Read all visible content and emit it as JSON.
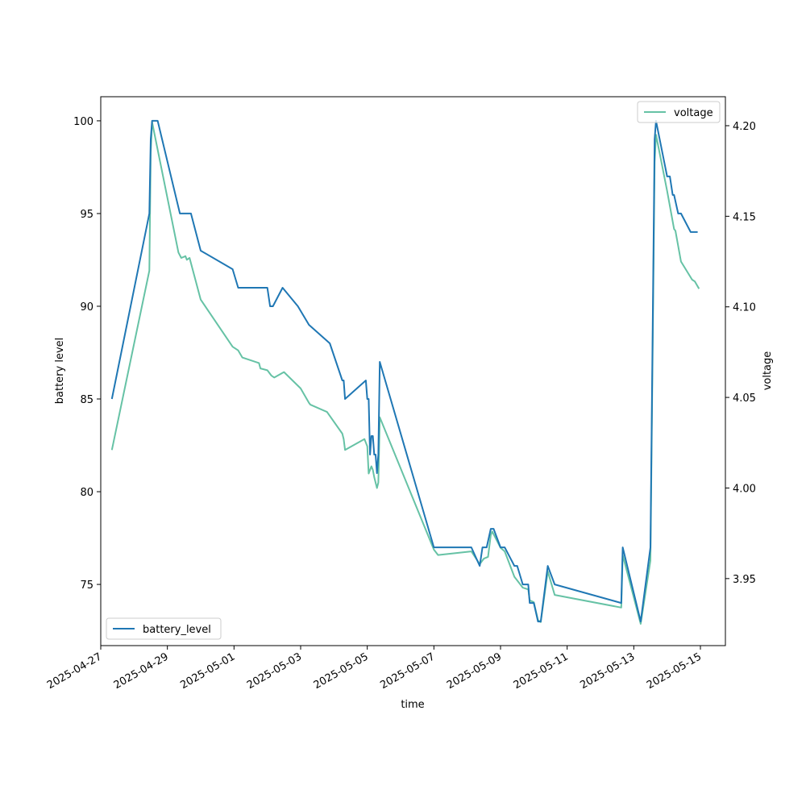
{
  "chart_data": {
    "type": "line",
    "xlabel": "time",
    "ylabel": "battery level",
    "y2label": "voltage",
    "xlim": [
      "2025-04-27T00:00",
      "2025-05-15T18:00"
    ],
    "ylim": [
      71.7,
      101.3
    ],
    "y2lim": [
      3.913,
      4.216
    ],
    "x_ticks": [
      "2025-04-27",
      "2025-04-29",
      "2025-05-01",
      "2025-05-03",
      "2025-05-05",
      "2025-05-07",
      "2025-05-09",
      "2025-05-11",
      "2025-05-13",
      "2025-05-15"
    ],
    "y_ticks": [
      "75",
      "80",
      "85",
      "90",
      "95",
      "100"
    ],
    "y2_ticks": [
      "3.95",
      "4.00",
      "4.05",
      "4.10",
      "4.15",
      "4.20"
    ],
    "grid": false,
    "series": [
      {
        "name": "battery_level",
        "axis": "left",
        "color": "#1f77b4",
        "legend_position": "lower-left",
        "points": [
          [
            "2025-04-27T08:00",
            85
          ],
          [
            "2025-04-28T11:00",
            95
          ],
          [
            "2025-04-28T12:00",
            99
          ],
          [
            "2025-04-28T13:00",
            100
          ],
          [
            "2025-04-28T17:00",
            100
          ],
          [
            "2025-04-29T09:00",
            95
          ],
          [
            "2025-04-29T17:00",
            95
          ],
          [
            "2025-04-30T00:00",
            93
          ],
          [
            "2025-04-30T23:00",
            92
          ],
          [
            "2025-05-01T03:00",
            91
          ],
          [
            "2025-05-02T00:00",
            91
          ],
          [
            "2025-05-02T02:00",
            90
          ],
          [
            "2025-05-02T04:00",
            90
          ],
          [
            "2025-05-02T11:00",
            91
          ],
          [
            "2025-05-02T22:00",
            90
          ],
          [
            "2025-05-03T06:00",
            89
          ],
          [
            "2025-05-03T21:00",
            88
          ],
          [
            "2025-05-04T06:00",
            86
          ],
          [
            "2025-05-04T07:00",
            86
          ],
          [
            "2025-05-04T08:00",
            85
          ],
          [
            "2025-05-04T23:00",
            86
          ],
          [
            "2025-05-05T00:00",
            85
          ],
          [
            "2025-05-05T01:00",
            85
          ],
          [
            "2025-05-05T02:00",
            82
          ],
          [
            "2025-05-05T03:00",
            83
          ],
          [
            "2025-05-05T04:00",
            83
          ],
          [
            "2025-05-05T05:00",
            82
          ],
          [
            "2025-05-05T06:00",
            82
          ],
          [
            "2025-05-05T07:00",
            81
          ],
          [
            "2025-05-05T08:00",
            82
          ],
          [
            "2025-05-05T09:00",
            87
          ],
          [
            "2025-05-07T00:00",
            77
          ],
          [
            "2025-05-08T03:00",
            77
          ],
          [
            "2025-05-08T09:00",
            76
          ],
          [
            "2025-05-08T11:00",
            77
          ],
          [
            "2025-05-08T14:00",
            77
          ],
          [
            "2025-05-08T17:00",
            78
          ],
          [
            "2025-05-08T19:00",
            78
          ],
          [
            "2025-05-09T00:00",
            77
          ],
          [
            "2025-05-09T03:00",
            77
          ],
          [
            "2025-05-09T10:00",
            76
          ],
          [
            "2025-05-09T12:00",
            76
          ],
          [
            "2025-05-09T16:00",
            75
          ],
          [
            "2025-05-09T20:00",
            75
          ],
          [
            "2025-05-09T21:00",
            74
          ],
          [
            "2025-05-10T00:00",
            74
          ],
          [
            "2025-05-10T03:00",
            73
          ],
          [
            "2025-05-10T05:00",
            73
          ],
          [
            "2025-05-10T10:00",
            76
          ],
          [
            "2025-05-10T15:00",
            75
          ],
          [
            "2025-05-12T15:00",
            74
          ],
          [
            "2025-05-12T16:00",
            77
          ],
          [
            "2025-05-13T05:00",
            73
          ],
          [
            "2025-05-13T12:00",
            77
          ],
          [
            "2025-05-13T15:00",
            99
          ],
          [
            "2025-05-13T16:00",
            100
          ],
          [
            "2025-05-14T00:00",
            97
          ],
          [
            "2025-05-14T02:00",
            97
          ],
          [
            "2025-05-14T04:00",
            96
          ],
          [
            "2025-05-14T05:00",
            96
          ],
          [
            "2025-05-14T08:00",
            95
          ],
          [
            "2025-05-14T10:00",
            95
          ],
          [
            "2025-05-14T17:00",
            94
          ],
          [
            "2025-05-14T22:00",
            94
          ]
        ]
      },
      {
        "name": "voltage",
        "axis": "right",
        "color": "#66c2a5",
        "legend_position": "upper-right",
        "points": [
          [
            "2025-04-27T08:00",
            4.021
          ],
          [
            "2025-04-28T11:00",
            4.12
          ],
          [
            "2025-04-28T12:00",
            4.185
          ],
          [
            "2025-04-28T13:00",
            4.202
          ],
          [
            "2025-04-29T08:00",
            4.13
          ],
          [
            "2025-04-29T10:00",
            4.127
          ],
          [
            "2025-04-29T13:00",
            4.128
          ],
          [
            "2025-04-29T14:00",
            4.126
          ],
          [
            "2025-04-29T16:00",
            4.127
          ],
          [
            "2025-04-30T00:00",
            4.104
          ],
          [
            "2025-04-30T23:00",
            4.078
          ],
          [
            "2025-05-01T03:00",
            4.076
          ],
          [
            "2025-05-01T06:00",
            4.072
          ],
          [
            "2025-05-01T18:00",
            4.069
          ],
          [
            "2025-05-01T19:00",
            4.066
          ],
          [
            "2025-05-02T00:00",
            4.065
          ],
          [
            "2025-05-02T03:00",
            4.062
          ],
          [
            "2025-05-02T05:00",
            4.061
          ],
          [
            "2025-05-02T12:00",
            4.064
          ],
          [
            "2025-05-03T00:00",
            4.055
          ],
          [
            "2025-05-03T06:00",
            4.047
          ],
          [
            "2025-05-03T07:00",
            4.046
          ],
          [
            "2025-05-03T19:00",
            4.042
          ],
          [
            "2025-05-04T06:00",
            4.03
          ],
          [
            "2025-05-04T07:00",
            4.027
          ],
          [
            "2025-05-04T08:00",
            4.021
          ],
          [
            "2025-05-04T22:00",
            4.027
          ],
          [
            "2025-05-05T00:00",
            4.023
          ],
          [
            "2025-05-05T01:00",
            4.008
          ],
          [
            "2025-05-05T02:00",
            4.01
          ],
          [
            "2025-05-05T03:00",
            4.012
          ],
          [
            "2025-05-05T04:00",
            4.01
          ],
          [
            "2025-05-05T05:00",
            4.006
          ],
          [
            "2025-05-05T06:00",
            4.003
          ],
          [
            "2025-05-05T07:00",
            4.0
          ],
          [
            "2025-05-05T08:00",
            4.003
          ],
          [
            "2025-05-05T09:00",
            4.039
          ],
          [
            "2025-05-07T00:00",
            3.966
          ],
          [
            "2025-05-07T03:00",
            3.963
          ],
          [
            "2025-05-08T03:00",
            3.965
          ],
          [
            "2025-05-08T09:00",
            3.958
          ],
          [
            "2025-05-08T12:00",
            3.961
          ],
          [
            "2025-05-08T15:00",
            3.962
          ],
          [
            "2025-05-08T17:00",
            3.974
          ],
          [
            "2025-05-08T18:00",
            3.976
          ],
          [
            "2025-05-09T00:00",
            3.967
          ],
          [
            "2025-05-09T03:00",
            3.965
          ],
          [
            "2025-05-09T10:00",
            3.951
          ],
          [
            "2025-05-09T12:00",
            3.949
          ],
          [
            "2025-05-09T16:00",
            3.945
          ],
          [
            "2025-05-09T20:00",
            3.944
          ],
          [
            "2025-05-09T21:00",
            3.938
          ],
          [
            "2025-05-10T00:00",
            3.937
          ],
          [
            "2025-05-10T03:00",
            3.927
          ],
          [
            "2025-05-10T05:00",
            3.926
          ],
          [
            "2025-05-10T10:00",
            3.954
          ],
          [
            "2025-05-10T15:00",
            3.941
          ],
          [
            "2025-05-12T15:00",
            3.934
          ],
          [
            "2025-05-12T16:00",
            3.963
          ],
          [
            "2025-05-13T05:00",
            3.925
          ],
          [
            "2025-05-13T12:00",
            3.96
          ],
          [
            "2025-05-13T15:00",
            4.18
          ],
          [
            "2025-05-13T16:00",
            4.195
          ],
          [
            "2025-05-14T00:00",
            4.164
          ],
          [
            "2025-05-14T05:00",
            4.143
          ],
          [
            "2025-05-14T06:00",
            4.142
          ],
          [
            "2025-05-14T10:00",
            4.125
          ],
          [
            "2025-05-14T18:00",
            4.115
          ],
          [
            "2025-05-14T20:00",
            4.114
          ],
          [
            "2025-05-14T23:00",
            4.11
          ]
        ]
      }
    ]
  }
}
